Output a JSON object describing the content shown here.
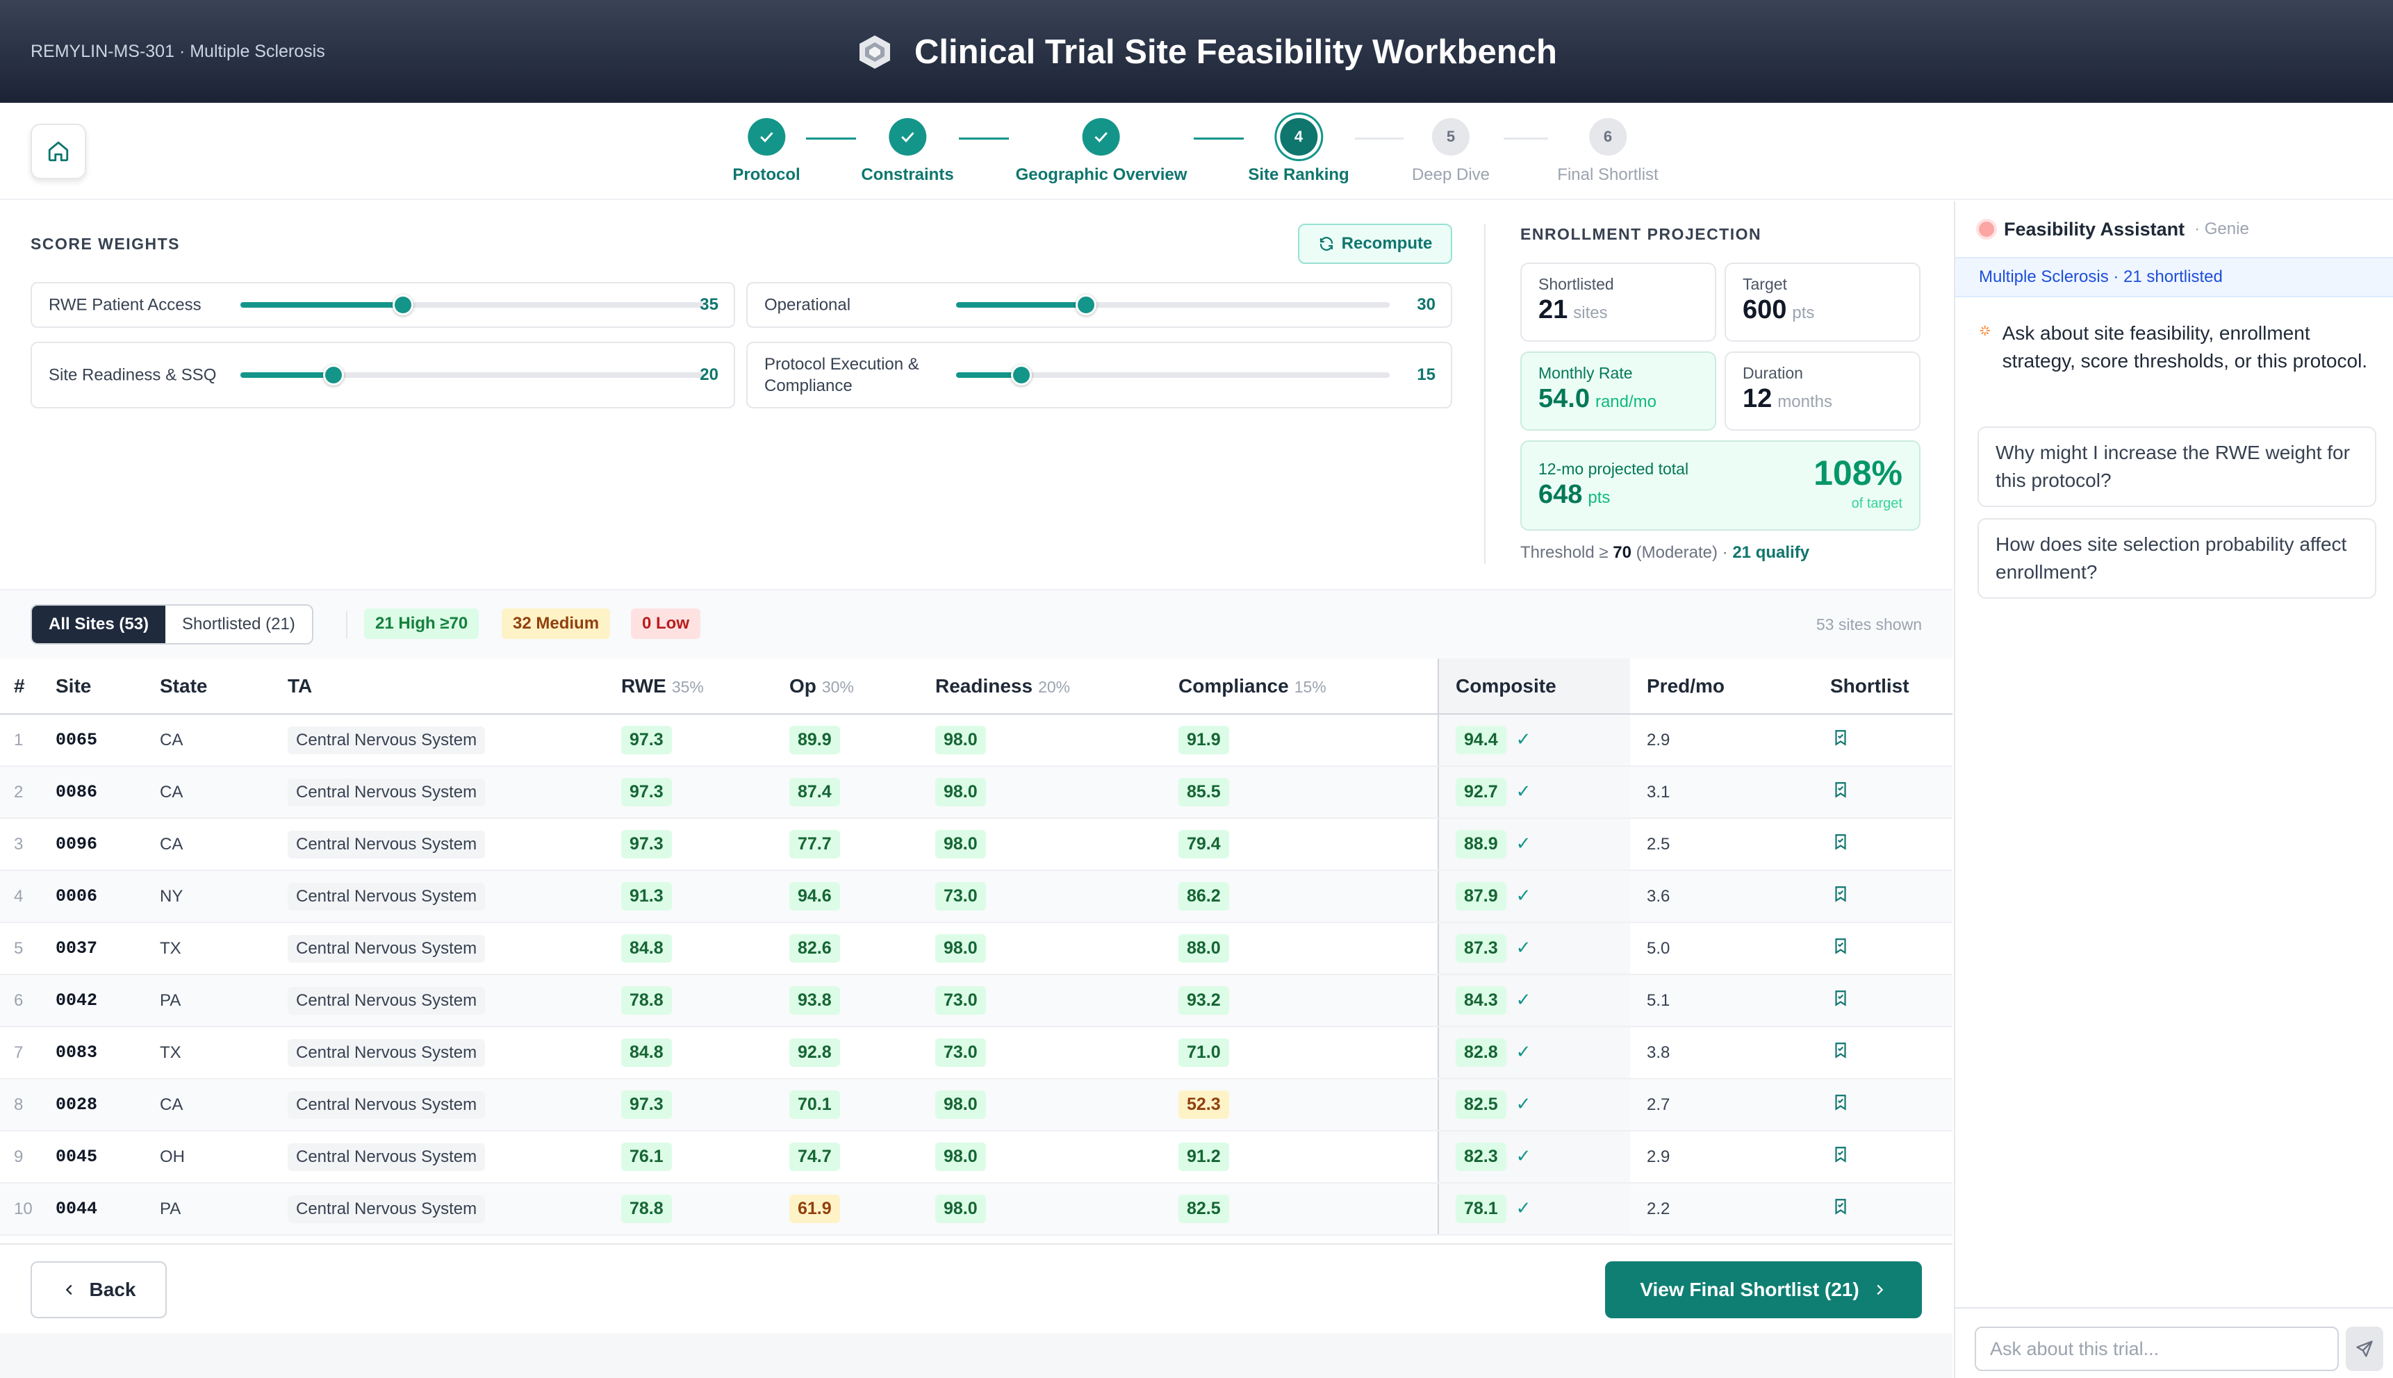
{
  "header": {
    "trial_id": "REMYLIN-MS-301 · Multiple Sclerosis",
    "title": "Clinical Trial Site Feasibility Workbench"
  },
  "steps": [
    {
      "num": "",
      "label": "Protocol",
      "state": "done"
    },
    {
      "num": "",
      "label": "Constraints",
      "state": "done"
    },
    {
      "num": "",
      "label": "Geographic Overview",
      "state": "done"
    },
    {
      "num": "4",
      "label": "Site Ranking",
      "state": "current"
    },
    {
      "num": "5",
      "label": "Deep Dive",
      "state": "todo"
    },
    {
      "num": "6",
      "label": "Final Shortlist",
      "state": "todo"
    }
  ],
  "weights": {
    "section_label": "SCORE WEIGHTS",
    "recompute_label": "Recompute",
    "items": [
      {
        "label": "RWE Patient Access",
        "value": "35",
        "level": 0.35
      },
      {
        "label": "Operational",
        "value": "30",
        "level": 0.3
      },
      {
        "label": "Site Readiness & SSQ",
        "value": "20",
        "level": 0.2
      },
      {
        "label": "Protocol Execution & Compliance",
        "value": "15",
        "level": 0.15
      }
    ]
  },
  "enrollment": {
    "section_label": "ENROLLMENT PROJECTION",
    "shortlisted": {
      "label": "Shortlisted",
      "value": "21",
      "unit": "sites"
    },
    "target": {
      "label": "Target",
      "value": "600",
      "unit": "pts"
    },
    "monthly_rate": {
      "label": "Monthly Rate",
      "value": "54.0",
      "unit": "rand/mo"
    },
    "duration": {
      "label": "Duration",
      "value": "12",
      "unit": "months"
    },
    "projected": {
      "label": "12-mo projected total",
      "value": "648",
      "unit": "pts",
      "percent": "108%",
      "percent_label": "of target"
    },
    "threshold": {
      "prefix": "Threshold ≥",
      "value": "70",
      "level": "(Moderate) ·",
      "qualify": "21 qualify"
    }
  },
  "filters": {
    "all_sites": "All Sites (53)",
    "shortlisted": "Shortlisted (21)",
    "high": "21 High ≥70",
    "medium": "32 Medium",
    "low": "0 Low",
    "shown": "53 sites shown"
  },
  "table": {
    "headers": {
      "num": "#",
      "site": "Site",
      "state": "State",
      "ta": "TA",
      "rwe": "RWE",
      "rwe_pct": "35%",
      "op": "Op",
      "op_pct": "30%",
      "readiness": "Readiness",
      "readiness_pct": "20%",
      "compliance": "Compliance",
      "compliance_pct": "15%",
      "composite": "Composite",
      "pred": "Pred/mo",
      "shortlist": "Shortlist"
    },
    "rows": [
      {
        "n": "1",
        "site": "0065",
        "state": "CA",
        "ta": "Central Nervous System",
        "rwe": "97.3",
        "op": "89.9",
        "ready": "98.0",
        "comp": "91.9",
        "composite": "94.4",
        "pred": "2.9"
      },
      {
        "n": "2",
        "site": "0086",
        "state": "CA",
        "ta": "Central Nervous System",
        "rwe": "97.3",
        "op": "87.4",
        "ready": "98.0",
        "comp": "85.5",
        "composite": "92.7",
        "pred": "3.1"
      },
      {
        "n": "3",
        "site": "0096",
        "state": "CA",
        "ta": "Central Nervous System",
        "rwe": "97.3",
        "op": "77.7",
        "ready": "98.0",
        "comp": "79.4",
        "composite": "88.9",
        "pred": "2.5"
      },
      {
        "n": "4",
        "site": "0006",
        "state": "NY",
        "ta": "Central Nervous System",
        "rwe": "91.3",
        "op": "94.6",
        "ready": "73.0",
        "comp": "86.2",
        "composite": "87.9",
        "pred": "3.6"
      },
      {
        "n": "5",
        "site": "0037",
        "state": "TX",
        "ta": "Central Nervous System",
        "rwe": "84.8",
        "op": "82.6",
        "ready": "98.0",
        "comp": "88.0",
        "composite": "87.3",
        "pred": "5.0"
      },
      {
        "n": "6",
        "site": "0042",
        "state": "PA",
        "ta": "Central Nervous System",
        "rwe": "78.8",
        "op": "93.8",
        "ready": "73.0",
        "comp": "93.2",
        "composite": "84.3",
        "pred": "5.1"
      },
      {
        "n": "7",
        "site": "0083",
        "state": "TX",
        "ta": "Central Nervous System",
        "rwe": "84.8",
        "op": "92.8",
        "ready": "73.0",
        "comp": "71.0",
        "composite": "82.8",
        "pred": "3.8"
      },
      {
        "n": "8",
        "site": "0028",
        "state": "CA",
        "ta": "Central Nervous System",
        "rwe": "97.3",
        "op": "70.1",
        "ready": "98.0",
        "comp": "52.3",
        "composite": "82.5",
        "pred": "2.7"
      },
      {
        "n": "9",
        "site": "0045",
        "state": "OH",
        "ta": "Central Nervous System",
        "rwe": "76.1",
        "op": "74.7",
        "ready": "98.0",
        "comp": "91.2",
        "composite": "82.3",
        "pred": "2.9"
      },
      {
        "n": "10",
        "site": "0044",
        "state": "PA",
        "ta": "Central Nervous System",
        "rwe": "78.8",
        "op": "61.9",
        "ready": "98.0",
        "comp": "82.5",
        "composite": "78.1",
        "pred": "2.2"
      }
    ]
  },
  "footer": {
    "back_label": "Back",
    "final_label": "View Final Shortlist (21)"
  },
  "assistant": {
    "title": "Feasibility Assistant",
    "subtitle": "· Genie",
    "context": "Multiple Sclerosis · 21 shortlisted",
    "intro": "Ask about site feasibility, enrollment strategy, score thresholds, or this protocol.",
    "suggestions": [
      "Why might I increase the RWE weight for this protocol?",
      "How does site selection probability affect enrollment?"
    ],
    "input_placeholder": "Ask about this trial..."
  },
  "colors": {
    "accent": "#14958a",
    "header_dark": "#1b2335",
    "high_bg": "#dcfce7",
    "medium_bg": "#fef3c7",
    "low_bg": "#fee2e2"
  }
}
